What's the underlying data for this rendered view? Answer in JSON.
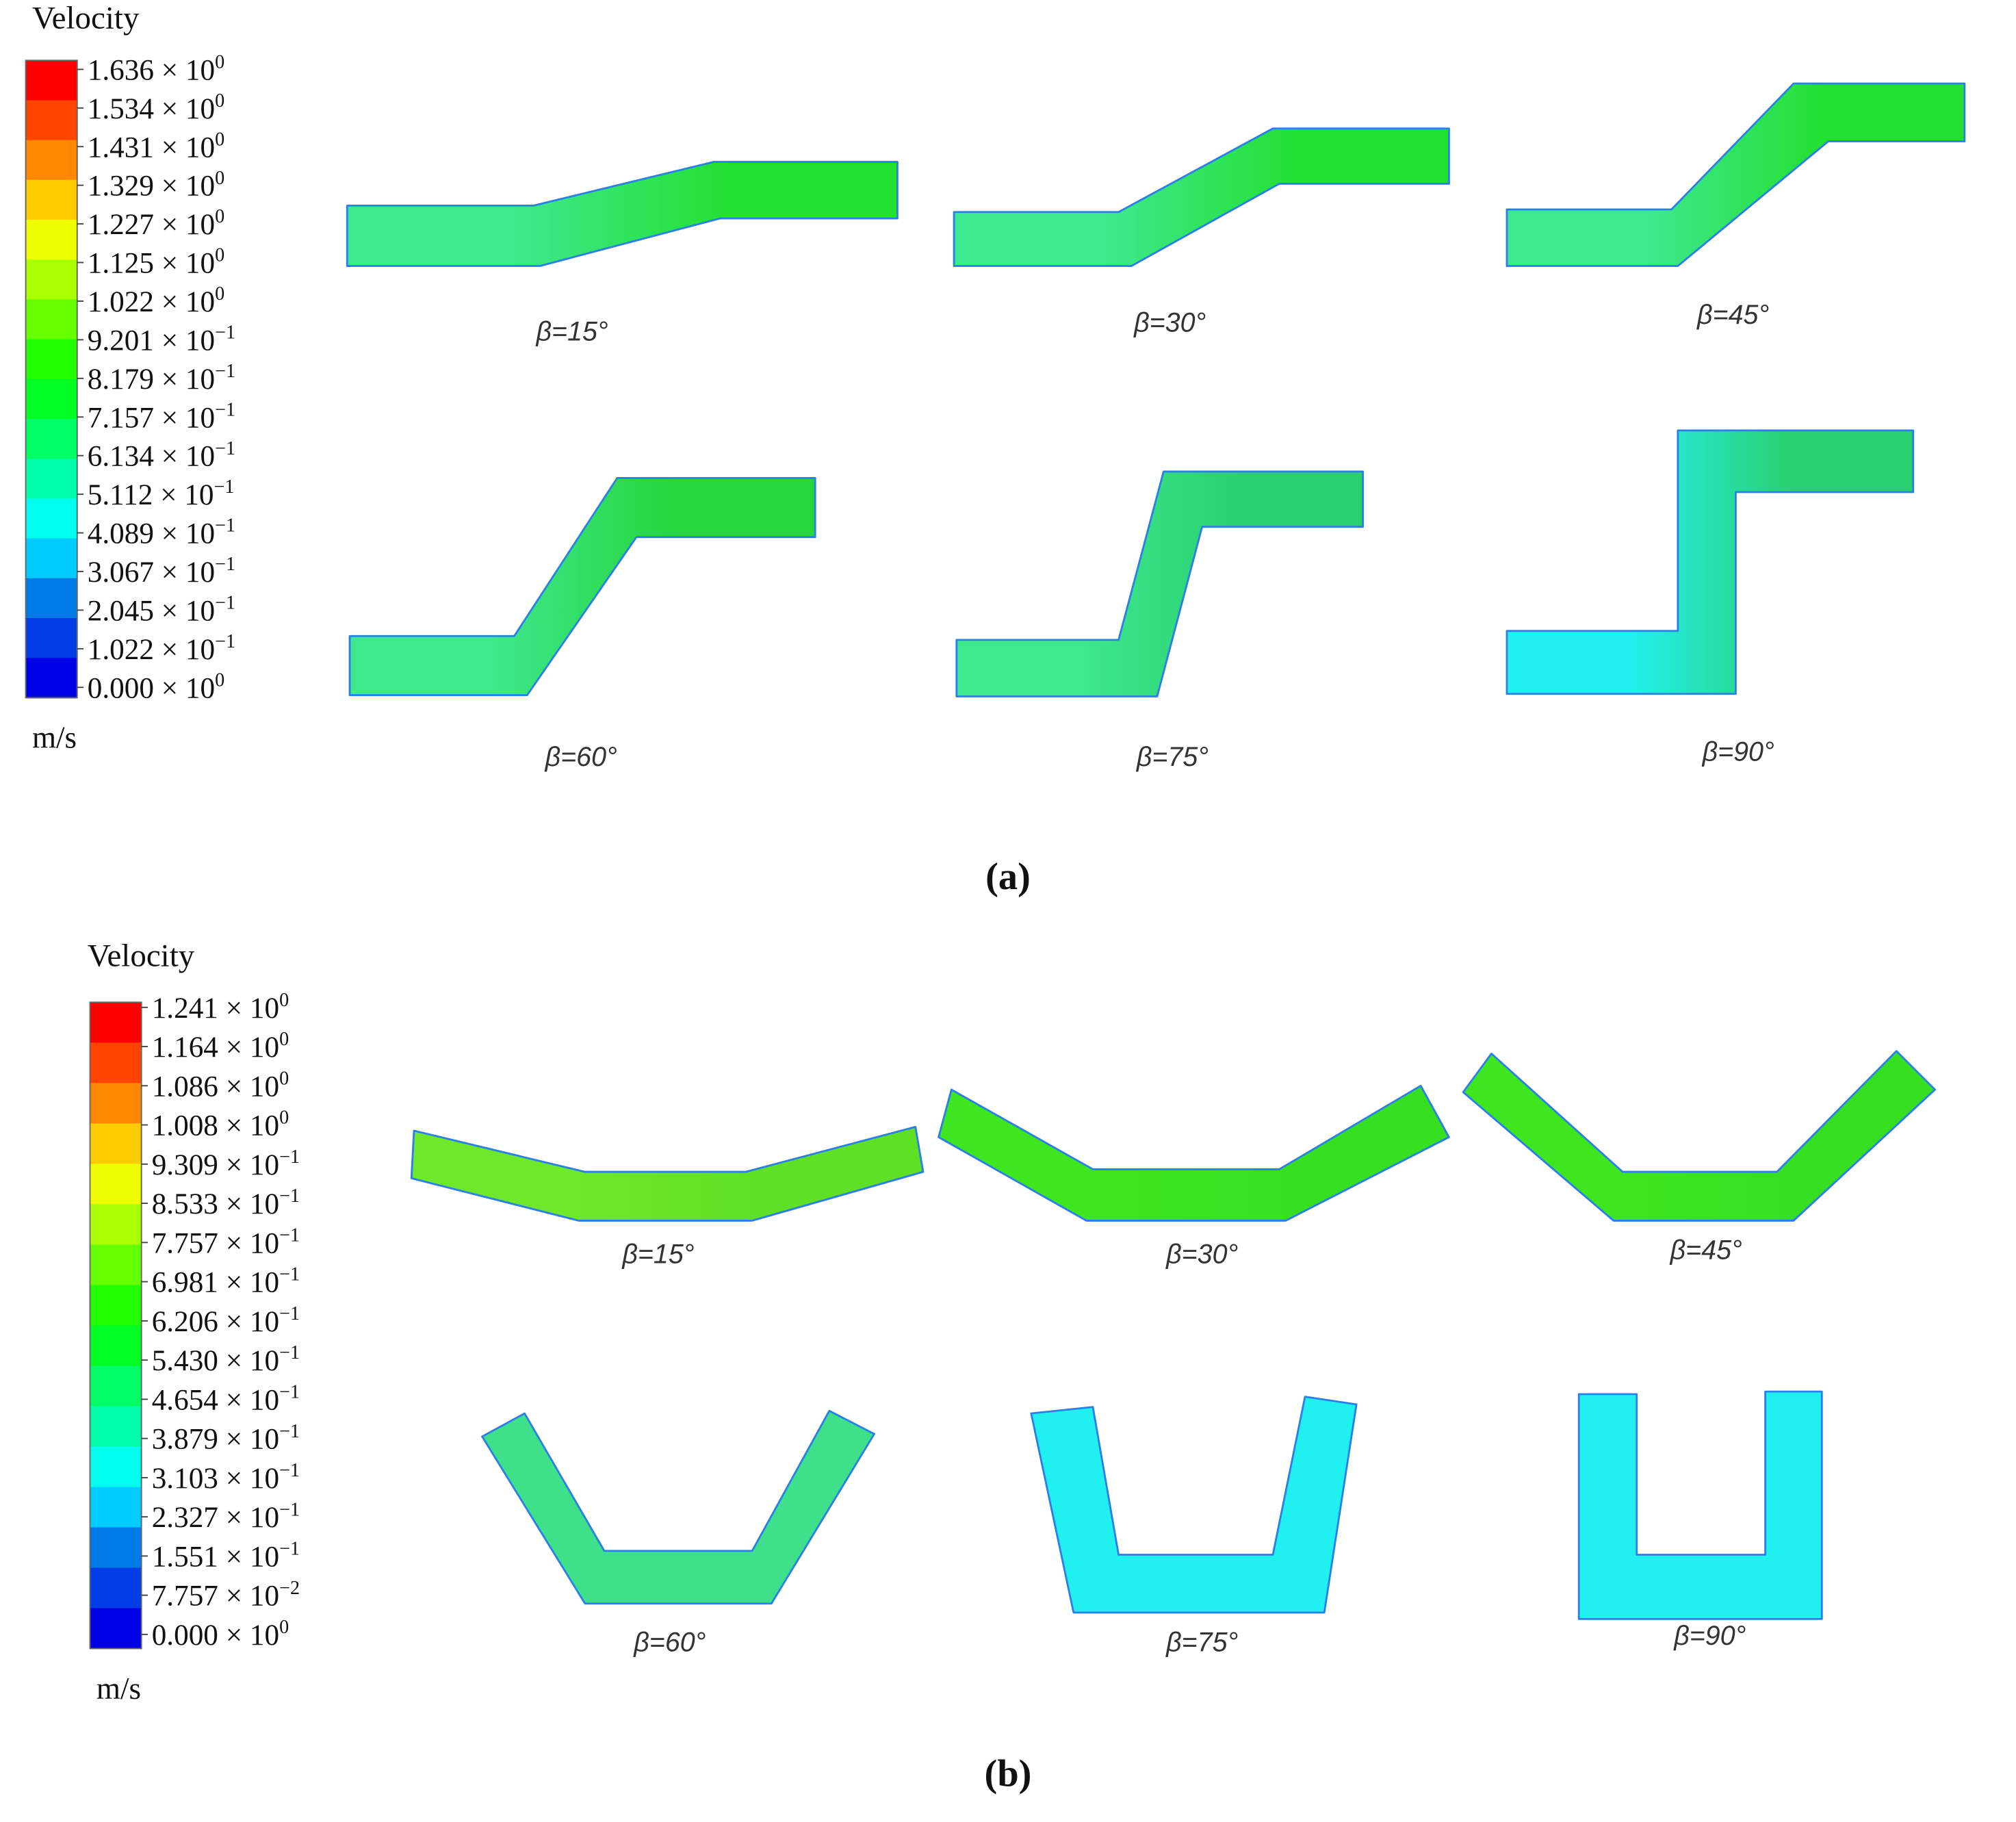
{
  "panels": [
    {
      "label": "(a)",
      "legend": {
        "title": "Velocity",
        "unit": "m/s",
        "ticks": [
          {
            "mantissa": "1.636 × 10",
            "exponent": "0"
          },
          {
            "mantissa": "1.534 × 10",
            "exponent": "0"
          },
          {
            "mantissa": "1.431 × 10",
            "exponent": "0"
          },
          {
            "mantissa": "1.329 × 10",
            "exponent": "0"
          },
          {
            "mantissa": "1.227 × 10",
            "exponent": "0"
          },
          {
            "mantissa": "1.125 × 10",
            "exponent": "0"
          },
          {
            "mantissa": "1.022 × 10",
            "exponent": "0"
          },
          {
            "mantissa": "9.201 × 10",
            "exponent": "−1"
          },
          {
            "mantissa": "8.179 × 10",
            "exponent": "−1"
          },
          {
            "mantissa": "7.157 × 10",
            "exponent": "−1"
          },
          {
            "mantissa": "6.134 × 10",
            "exponent": "−1"
          },
          {
            "mantissa": "5.112 × 10",
            "exponent": "−1"
          },
          {
            "mantissa": "4.089 × 10",
            "exponent": "−1"
          },
          {
            "mantissa": "3.067 × 10",
            "exponent": "−1"
          },
          {
            "mantissa": "2.045 × 10",
            "exponent": "−1"
          },
          {
            "mantissa": "1.022 × 10",
            "exponent": "−1"
          },
          {
            "mantissa": "0.000 × 10",
            "exponent": "0"
          }
        ]
      },
      "cases": [
        "β=15°",
        "β=30°",
        "β=45°",
        "β=60°",
        "β=75°",
        "β=90°"
      ]
    },
    {
      "label": "(b)",
      "legend": {
        "title": "Velocity",
        "unit": "m/s",
        "ticks": [
          {
            "mantissa": "1.241 × 10",
            "exponent": "0"
          },
          {
            "mantissa": "1.164 × 10",
            "exponent": "0"
          },
          {
            "mantissa": "1.086 × 10",
            "exponent": "0"
          },
          {
            "mantissa": "1.008 × 10",
            "exponent": "0"
          },
          {
            "mantissa": "9.309 × 10",
            "exponent": "−1"
          },
          {
            "mantissa": "8.533 × 10",
            "exponent": "−1"
          },
          {
            "mantissa": "7.757 × 10",
            "exponent": "−1"
          },
          {
            "mantissa": "6.981 × 10",
            "exponent": "−1"
          },
          {
            "mantissa": "6.206 × 10",
            "exponent": "−1"
          },
          {
            "mantissa": "5.430 × 10",
            "exponent": "−1"
          },
          {
            "mantissa": "4.654 × 10",
            "exponent": "−1"
          },
          {
            "mantissa": "3.879 × 10",
            "exponent": "−1"
          },
          {
            "mantissa": "3.103 × 10",
            "exponent": "−1"
          },
          {
            "mantissa": "2.327 × 10",
            "exponent": "−1"
          },
          {
            "mantissa": "1.551 × 10",
            "exponent": "−1"
          },
          {
            "mantissa": "7.757 × 10",
            "exponent": "−2"
          },
          {
            "mantissa": "0.000 × 10",
            "exponent": "0"
          }
        ]
      },
      "cases": [
        "β=15°",
        "β=30°",
        "β=45°",
        "β=60°",
        "β=75°",
        "β=90°"
      ]
    }
  ]
}
